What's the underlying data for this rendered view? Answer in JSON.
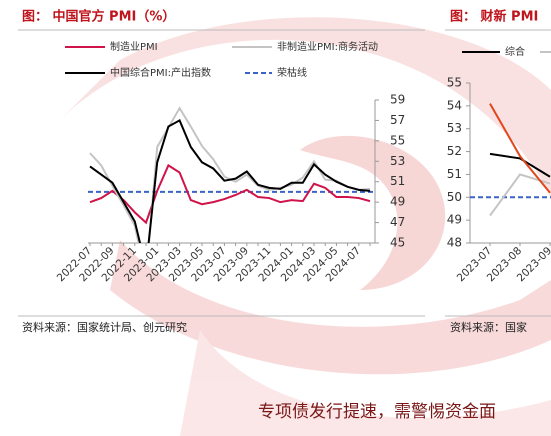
{
  "chart_data": [
    {
      "type": "line",
      "title": "图： 中国官方 PMI（%）",
      "source": "资料来源：国家统计局、创元研究",
      "categories": [
        "2022-07",
        null,
        "2022-09",
        null,
        "2022-11",
        null,
        "2023-01",
        null,
        "2023-03",
        null,
        "2023-05",
        null,
        "2023-07",
        null,
        "2023-09",
        null,
        "2023-11",
        null,
        "2024-01",
        null,
        "2024-03",
        null,
        "2024-05",
        null,
        "2024-07",
        null
      ],
      "series": [
        {
          "name": "制造业PMI",
          "color": "#d0134a",
          "values": [
            49.0,
            49.4,
            50.1,
            49.2,
            48.0,
            47.0,
            50.1,
            52.6,
            51.9,
            49.2,
            48.8,
            49.0,
            49.3,
            49.7,
            50.2,
            49.5,
            49.4,
            49.0,
            49.2,
            49.1,
            50.8,
            50.4,
            49.5,
            49.5,
            49.4,
            49.1
          ]
        },
        {
          "name": "非制造业PMI:商务活动",
          "color": "#c4c4c4",
          "values": [
            53.8,
            52.6,
            50.6,
            48.7,
            46.7,
            41.6,
            54.4,
            56.3,
            58.2,
            56.4,
            54.5,
            53.2,
            51.5,
            51.0,
            51.7,
            50.6,
            50.2,
            50.4,
            50.7,
            51.4,
            53.0,
            51.2,
            51.1,
            50.5,
            50.2,
            50.3
          ]
        },
        {
          "name": "中国综合PMI:产出指数",
          "color": "#000000",
          "values": [
            52.5,
            51.7,
            50.9,
            49.0,
            47.1,
            42.6,
            52.9,
            56.4,
            57.0,
            54.4,
            52.9,
            52.3,
            51.1,
            51.3,
            52.0,
            50.7,
            50.4,
            50.3,
            50.9,
            50.9,
            52.7,
            51.7,
            51.0,
            50.5,
            50.2,
            50.1
          ]
        }
      ],
      "ref_line": {
        "name": "荣枯线",
        "value": 50,
        "color": "#3a62c9"
      },
      "ylim": [
        45,
        59
      ],
      "yticks": [
        45,
        47,
        49,
        51,
        53,
        55,
        57,
        59
      ],
      "y_axis_side": "right"
    },
    {
      "type": "line",
      "title": "图： 财新 PMI",
      "source": "资料来源：国家",
      "categories": [
        "2023-07",
        "2023-08",
        "2023-09"
      ],
      "series": [
        {
          "name": "综合",
          "color": "#000000",
          "values": [
            51.9,
            51.7,
            50.9
          ]
        },
        {
          "color": "#c4c4c4",
          "values": [
            49.2,
            51.0,
            50.6
          ]
        },
        {
          "color": "#e0471c",
          "values": [
            54.1,
            51.8,
            50.2
          ]
        }
      ],
      "ref_line": {
        "value": 50,
        "color": "#3a62c9"
      },
      "ylim": [
        48,
        55
      ],
      "yticks": [
        48,
        49,
        50,
        51,
        52,
        53,
        54,
        55
      ],
      "y_axis_side": "left"
    }
  ],
  "heading": "专项债发行提速，需警惕资金面"
}
